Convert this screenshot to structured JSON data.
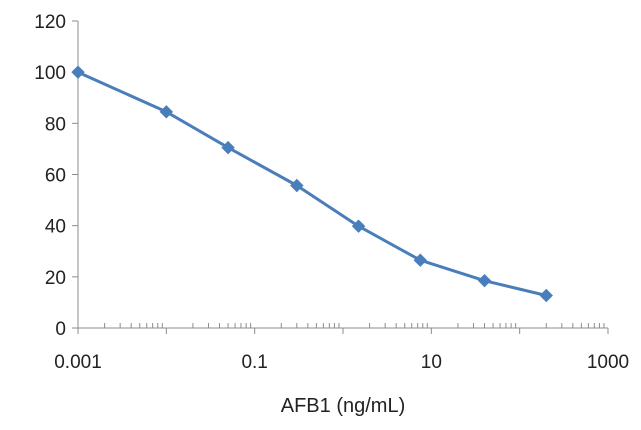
{
  "chart_data": {
    "type": "line",
    "title": "",
    "xlabel": "AFB1 (ng/mL)",
    "ylabel": "",
    "x_scale": "log",
    "xlim": [
      0.001,
      1000
    ],
    "ylim": [
      0,
      120
    ],
    "x_ticks": [
      "0.001",
      "0.1",
      "10",
      "1000"
    ],
    "y_ticks": [
      "0",
      "20",
      "40",
      "60",
      "80",
      "100",
      "120"
    ],
    "grid": false,
    "legend": "none",
    "series": [
      {
        "color": "#4A7EBB",
        "marker": "diamond",
        "x": [
          0.001,
          0.01,
          0.05,
          0.3,
          1.5,
          7.5,
          40,
          200
        ],
        "y": [
          100,
          84.5,
          70.5,
          55.7,
          39.8,
          26.5,
          18.5,
          12.7
        ]
      }
    ]
  }
}
